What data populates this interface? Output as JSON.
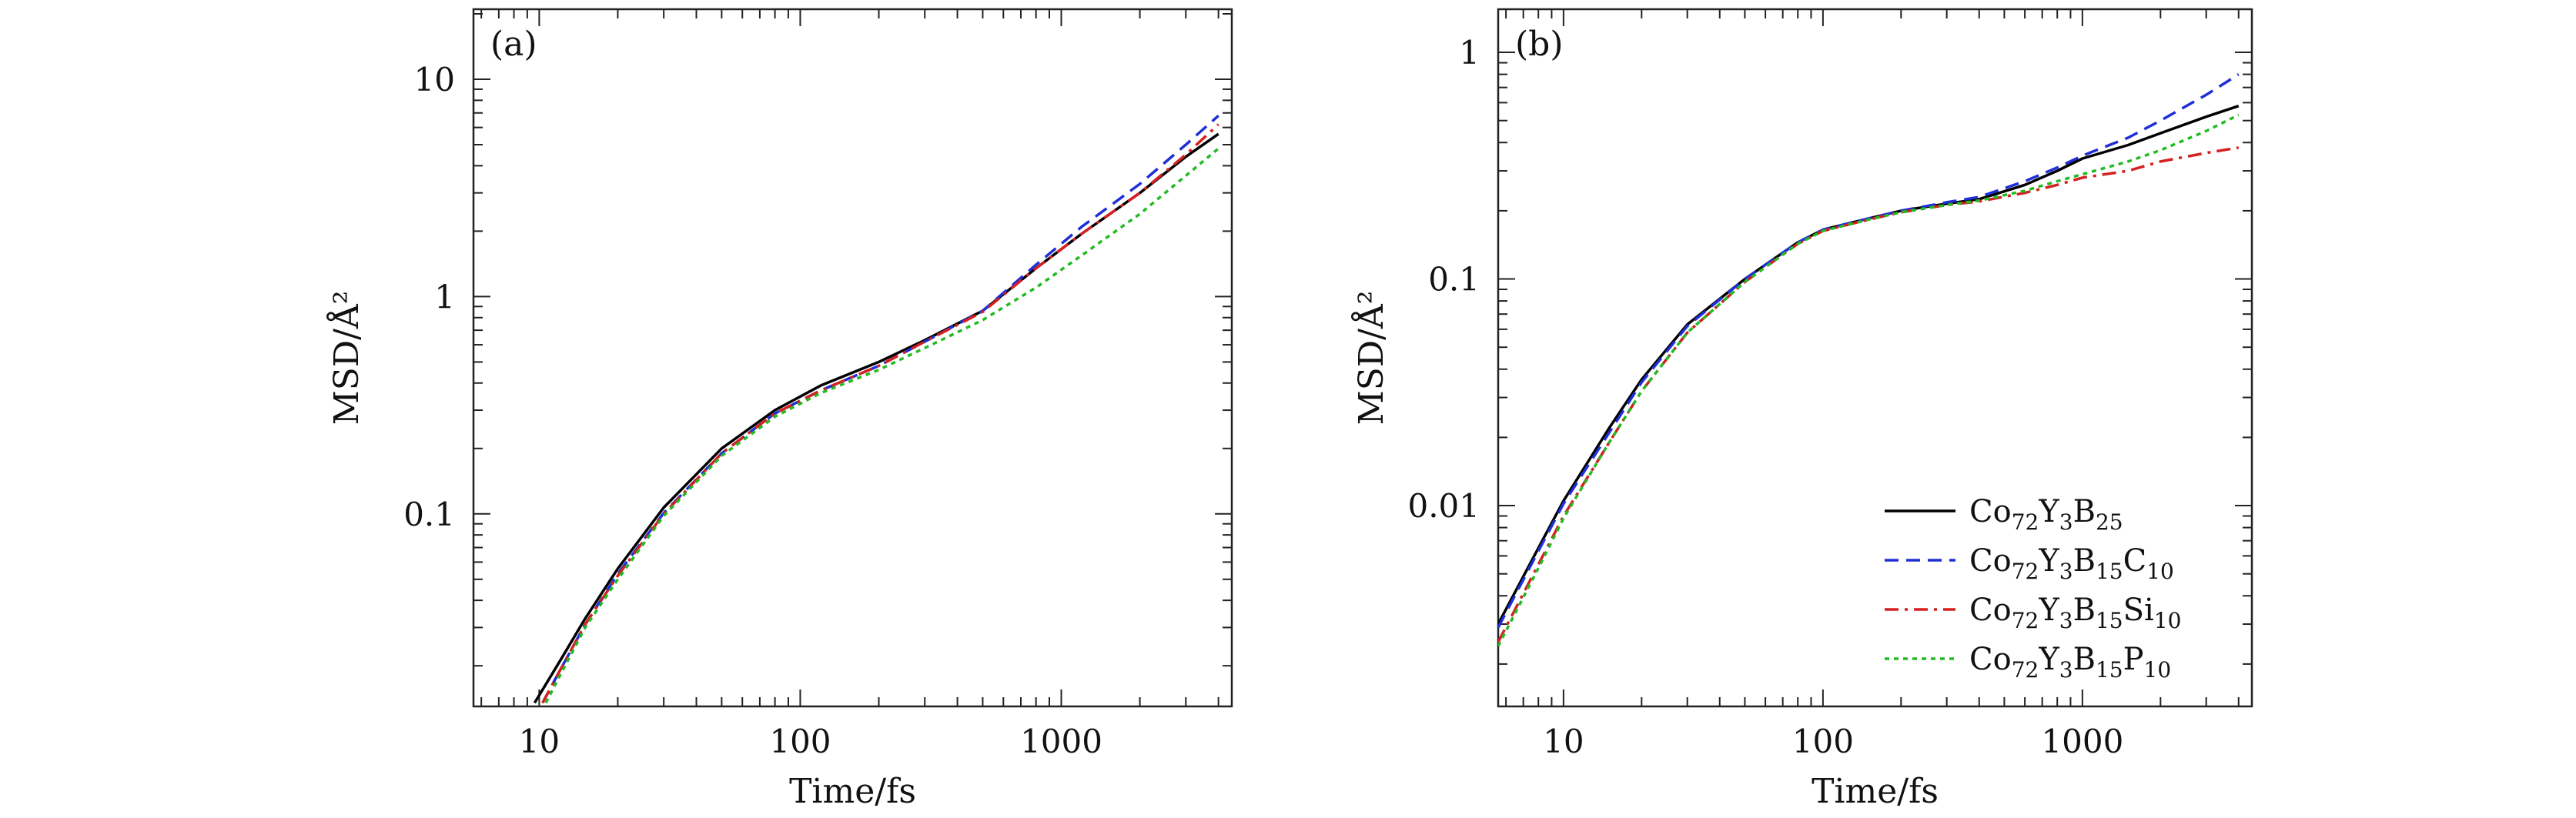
{
  "chart_data": [
    {
      "panel_label": "(a)",
      "type": "line",
      "x_scale": "log",
      "y_scale": "log",
      "xlim": [
        5.6,
        4500
      ],
      "ylim": [
        0.013,
        21
      ],
      "xlabel": "Time/fs",
      "ylabel": "MSD/Å²",
      "x_ticks": [
        10,
        100,
        1000
      ],
      "x_tick_labels": [
        "10",
        "100",
        "1000"
      ],
      "y_ticks": [
        0.1,
        1,
        10
      ],
      "y_tick_labels": [
        "0.1",
        "1",
        "10"
      ],
      "series": [
        {
          "name": "Co72Y3B25",
          "color": "#000000",
          "dash": "solid",
          "x": [
            9.6,
            12,
            15,
            20,
            30,
            50,
            80,
            120,
            200,
            300,
            500,
            800,
            1200,
            2000,
            3000,
            4000
          ],
          "y": [
            0.0135,
            0.021,
            0.033,
            0.056,
            0.107,
            0.2,
            0.3,
            0.39,
            0.5,
            0.63,
            0.86,
            1.35,
            1.95,
            3.0,
            4.4,
            5.6
          ]
        },
        {
          "name": "Co72Y3B15C10",
          "color": "#1f2fd6",
          "dash": "dashed",
          "x": [
            10.3,
            12,
            15,
            20,
            30,
            50,
            80,
            120,
            200,
            300,
            500,
            800,
            1200,
            2000,
            3000,
            4000
          ],
          "y": [
            0.0135,
            0.019,
            0.031,
            0.053,
            0.101,
            0.19,
            0.29,
            0.37,
            0.48,
            0.62,
            0.86,
            1.4,
            2.1,
            3.3,
            5.0,
            6.8
          ]
        },
        {
          "name": "Co72Y3B15Si10",
          "color": "#d42020",
          "dash": "dashdot",
          "x": [
            10.3,
            12,
            15,
            20,
            30,
            50,
            80,
            120,
            200,
            300,
            500,
            800,
            1200,
            2000,
            3000,
            4000
          ],
          "y": [
            0.0135,
            0.019,
            0.031,
            0.052,
            0.1,
            0.19,
            0.29,
            0.37,
            0.48,
            0.62,
            0.85,
            1.35,
            1.95,
            3.0,
            4.5,
            6.2
          ]
        },
        {
          "name": "Co72Y3B15P10",
          "color": "#22bb22",
          "dash": "dotted",
          "x": [
            10.6,
            12,
            15,
            20,
            30,
            50,
            80,
            120,
            200,
            300,
            500,
            800,
            1200,
            2000,
            3000,
            4000
          ],
          "y": [
            0.0135,
            0.018,
            0.03,
            0.05,
            0.098,
            0.185,
            0.28,
            0.36,
            0.46,
            0.58,
            0.78,
            1.1,
            1.55,
            2.4,
            3.6,
            4.8
          ]
        }
      ]
    },
    {
      "panel_label": "(b)",
      "type": "line",
      "x_scale": "log",
      "y_scale": "log",
      "xlim": [
        5.6,
        4500
      ],
      "ylim": [
        0.0013,
        1.55
      ],
      "xlabel": "Time/fs",
      "ylabel": "MSD/Å²",
      "x_ticks": [
        10,
        100,
        1000
      ],
      "x_tick_labels": [
        "10",
        "100",
        "1000"
      ],
      "y_ticks": [
        0.01,
        0.1,
        1
      ],
      "y_tick_labels": [
        "0.01",
        "0.1",
        "1"
      ],
      "legend_position": "lower-right",
      "series": [
        {
          "name": "Co72Y3B25",
          "color": "#000000",
          "dash": "solid",
          "x": [
            5.6,
            8,
            10,
            15,
            20,
            30,
            50,
            80,
            100,
            150,
            200,
            300,
            400,
            600,
            800,
            1000,
            1500,
            2000,
            3000,
            4000
          ],
          "y": [
            0.003,
            0.0065,
            0.0105,
            0.022,
            0.036,
            0.063,
            0.1,
            0.145,
            0.165,
            0.185,
            0.2,
            0.215,
            0.225,
            0.26,
            0.3,
            0.34,
            0.39,
            0.44,
            0.52,
            0.58
          ]
        },
        {
          "name": "Co72Y3B15C10",
          "color": "#1f2fd6",
          "dash": "dashed",
          "x": [
            5.6,
            8,
            10,
            15,
            20,
            30,
            50,
            80,
            100,
            150,
            200,
            300,
            400,
            600,
            800,
            1000,
            1500,
            2000,
            3000,
            4000
          ],
          "y": [
            0.0029,
            0.0063,
            0.0102,
            0.021,
            0.035,
            0.062,
            0.1,
            0.145,
            0.165,
            0.185,
            0.2,
            0.218,
            0.23,
            0.27,
            0.31,
            0.35,
            0.42,
            0.5,
            0.65,
            0.8
          ]
        },
        {
          "name": "Co72Y3B15Si10",
          "color": "#d42020",
          "dash": "dashdot",
          "x": [
            5.6,
            8,
            10,
            15,
            20,
            30,
            50,
            80,
            100,
            150,
            200,
            300,
            400,
            600,
            800,
            1000,
            1500,
            2000,
            3000,
            4000
          ],
          "y": [
            0.0025,
            0.0055,
            0.009,
            0.019,
            0.032,
            0.058,
            0.097,
            0.143,
            0.163,
            0.183,
            0.197,
            0.212,
            0.22,
            0.24,
            0.26,
            0.28,
            0.3,
            0.33,
            0.36,
            0.38
          ]
        },
        {
          "name": "Co72Y3B15P10",
          "color": "#22bb22",
          "dash": "dotted",
          "x": [
            5.6,
            8,
            10,
            15,
            20,
            30,
            50,
            80,
            100,
            150,
            200,
            300,
            400,
            600,
            800,
            1000,
            1500,
            2000,
            3000,
            4000
          ],
          "y": [
            0.0024,
            0.0053,
            0.0088,
            0.019,
            0.032,
            0.058,
            0.097,
            0.143,
            0.163,
            0.183,
            0.197,
            0.212,
            0.222,
            0.245,
            0.27,
            0.29,
            0.33,
            0.37,
            0.45,
            0.53
          ]
        }
      ]
    }
  ],
  "legend": {
    "entries": [
      {
        "color": "#000000",
        "dash": "solid",
        "parts": [
          [
            "Co",
            ""
          ],
          [
            "72",
            "sub"
          ],
          [
            "Y",
            ""
          ],
          [
            "3",
            "sub"
          ],
          [
            "B",
            ""
          ],
          [
            "25",
            "sub"
          ]
        ]
      },
      {
        "color": "#1f2fd6",
        "dash": "dashed",
        "parts": [
          [
            "Co",
            ""
          ],
          [
            "72",
            "sub"
          ],
          [
            "Y",
            ""
          ],
          [
            "3",
            "sub"
          ],
          [
            "B",
            ""
          ],
          [
            "15",
            "sub"
          ],
          [
            "C",
            ""
          ],
          [
            "10",
            "sub"
          ]
        ]
      },
      {
        "color": "#d42020",
        "dash": "dashdot",
        "parts": [
          [
            "Co",
            ""
          ],
          [
            "72",
            "sub"
          ],
          [
            "Y",
            ""
          ],
          [
            "3",
            "sub"
          ],
          [
            "B",
            ""
          ],
          [
            "15",
            "sub"
          ],
          [
            "Si",
            ""
          ],
          [
            "10",
            "sub"
          ]
        ]
      },
      {
        "color": "#22bb22",
        "dash": "dotted",
        "parts": [
          [
            "Co",
            ""
          ],
          [
            "72",
            "sub"
          ],
          [
            "Y",
            ""
          ],
          [
            "3",
            "sub"
          ],
          [
            "B",
            ""
          ],
          [
            "15",
            "sub"
          ],
          [
            "P",
            ""
          ],
          [
            "10",
            "sub"
          ]
        ]
      }
    ]
  }
}
